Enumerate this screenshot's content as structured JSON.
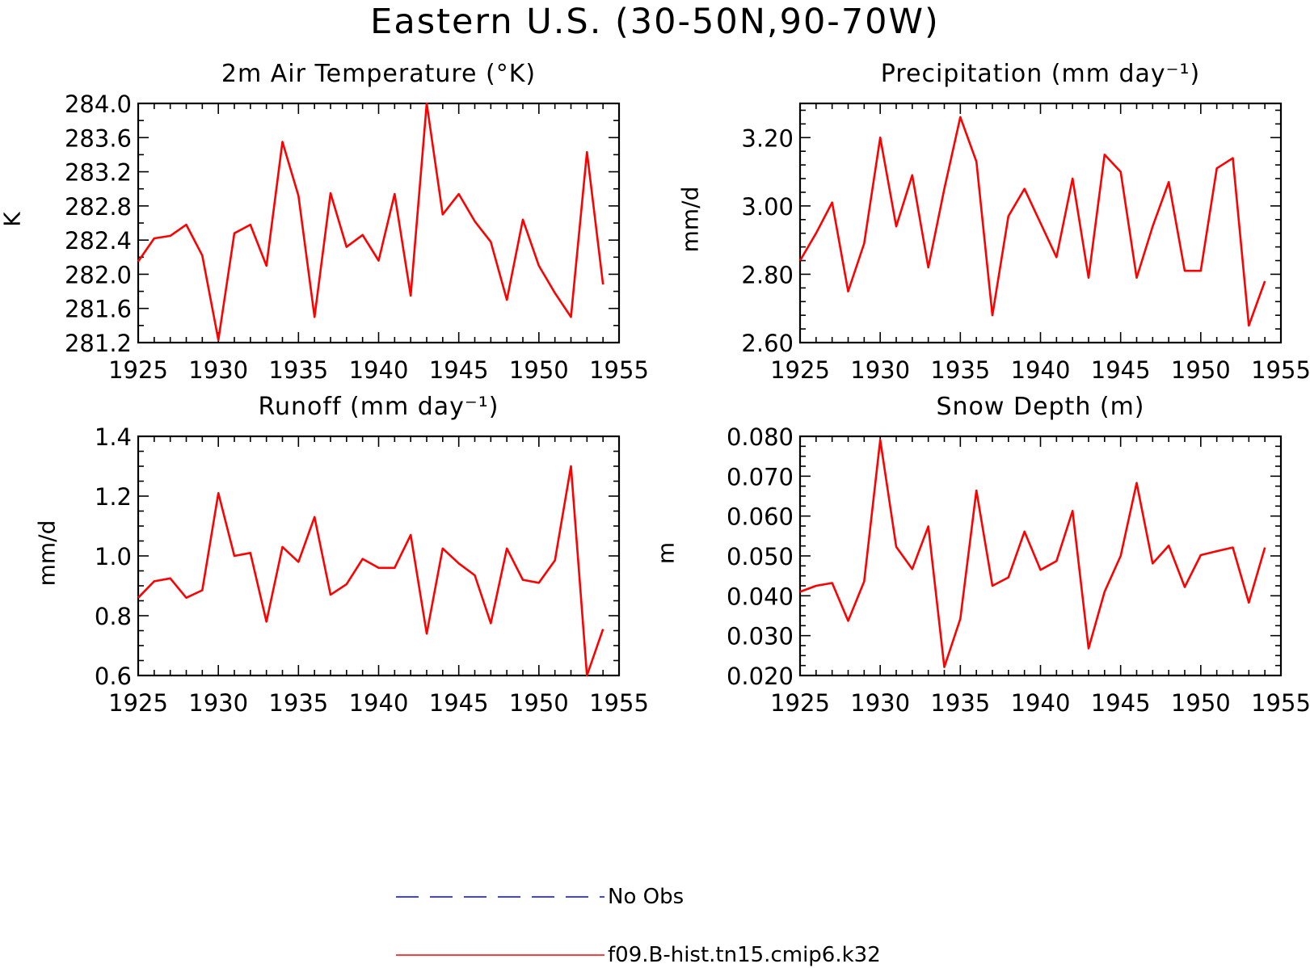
{
  "figure_title": "Eastern U.S. (30-50N,90-70W)",
  "legend": [
    {
      "label": "No Obs",
      "color": "#0000ff",
      "style": "dashed"
    },
    {
      "label": "f09.B-hist.tn15.cmip6.k32",
      "color": "#ff0000",
      "style": "solid"
    }
  ],
  "chart_data": [
    {
      "type": "line",
      "title": "2m Air Temperature (°K)",
      "xlabel": "",
      "ylabel": "K",
      "xlim": [
        1925,
        1955
      ],
      "ylim": [
        281.2,
        284.0
      ],
      "xticks": [
        "1925",
        "1930",
        "1935",
        "1940",
        "1945",
        "1950",
        "1955"
      ],
      "yticks": [
        "281.2",
        "281.6",
        "282.0",
        "282.4",
        "282.8",
        "283.2",
        "283.6",
        "284.0"
      ],
      "x": [
        1925,
        1926,
        1927,
        1928,
        1929,
        1930,
        1931,
        1932,
        1933,
        1934,
        1935,
        1936,
        1937,
        1938,
        1939,
        1940,
        1941,
        1942,
        1943,
        1944,
        1945,
        1946,
        1947,
        1948,
        1949,
        1950,
        1951,
        1952,
        1953,
        1954
      ],
      "series": [
        {
          "name": "f09.B-hist.tn15.cmip6.k32",
          "color": "#ff0000",
          "values": [
            282.15,
            282.42,
            282.45,
            282.58,
            282.22,
            281.23,
            282.48,
            282.58,
            282.1,
            283.55,
            282.92,
            281.5,
            282.95,
            282.32,
            282.46,
            282.16,
            282.94,
            281.75,
            284.0,
            282.7,
            282.94,
            282.62,
            282.38,
            281.7,
            282.64,
            282.1,
            281.78,
            281.5,
            283.43,
            281.88
          ]
        }
      ],
      "grid": false
    },
    {
      "type": "line",
      "title": "Precipitation (mm day⁻¹)",
      "xlabel": "",
      "ylabel": "mm/d",
      "xlim": [
        1925,
        1955
      ],
      "ylim": [
        2.6,
        3.3
      ],
      "xticks": [
        "1925",
        "1930",
        "1935",
        "1940",
        "1945",
        "1950",
        "1955"
      ],
      "yticks": [
        "2.60",
        "2.80",
        "3.00",
        "3.20"
      ],
      "x": [
        1925,
        1926,
        1927,
        1928,
        1929,
        1930,
        1931,
        1932,
        1933,
        1934,
        1935,
        1936,
        1937,
        1938,
        1939,
        1940,
        1941,
        1942,
        1943,
        1944,
        1945,
        1946,
        1947,
        1948,
        1949,
        1950,
        1951,
        1952,
        1953,
        1954
      ],
      "series": [
        {
          "name": "f09.B-hist.tn15.cmip6.k32",
          "color": "#ff0000",
          "values": [
            2.84,
            2.92,
            3.01,
            2.75,
            2.89,
            3.2,
            2.94,
            3.09,
            2.82,
            3.05,
            3.26,
            3.13,
            2.68,
            2.97,
            3.05,
            2.95,
            2.85,
            3.08,
            2.79,
            3.15,
            3.1,
            2.79,
            2.94,
            3.07,
            2.81,
            2.81,
            3.11,
            3.14,
            2.65,
            2.78
          ]
        }
      ],
      "grid": false
    },
    {
      "type": "line",
      "title": "Runoff (mm day⁻¹)",
      "xlabel": "",
      "ylabel": "mm/d",
      "xlim": [
        1925,
        1955
      ],
      "ylim": [
        0.6,
        1.4
      ],
      "xticks": [
        "1925",
        "1930",
        "1935",
        "1940",
        "1945",
        "1950",
        "1955"
      ],
      "yticks": [
        "0.6",
        "0.8",
        "1.0",
        "1.2",
        "1.4"
      ],
      "x": [
        1925,
        1926,
        1927,
        1928,
        1929,
        1930,
        1931,
        1932,
        1933,
        1934,
        1935,
        1936,
        1937,
        1938,
        1939,
        1940,
        1941,
        1942,
        1943,
        1944,
        1945,
        1946,
        1947,
        1948,
        1949,
        1950,
        1951,
        1952,
        1953,
        1954
      ],
      "series": [
        {
          "name": "f09.B-hist.tn15.cmip6.k32",
          "color": "#ff0000",
          "values": [
            0.86,
            0.915,
            0.925,
            0.86,
            0.885,
            1.21,
            1.0,
            1.01,
            0.78,
            1.03,
            0.98,
            1.13,
            0.87,
            0.905,
            0.99,
            0.96,
            0.96,
            1.07,
            0.74,
            1.025,
            0.975,
            0.935,
            0.775,
            1.025,
            0.92,
            0.91,
            0.985,
            1.3,
            0.6,
            0.755
          ]
        }
      ],
      "grid": false
    },
    {
      "type": "line",
      "title": "Snow Depth (m)",
      "xlabel": "",
      "ylabel": "m",
      "xlim": [
        1925,
        1955
      ],
      "ylim": [
        0.02,
        0.08
      ],
      "xticks": [
        "1925",
        "1930",
        "1935",
        "1940",
        "1945",
        "1950",
        "1955"
      ],
      "yticks": [
        "0.020",
        "0.030",
        "0.040",
        "0.050",
        "0.060",
        "0.070",
        "0.080"
      ],
      "x": [
        1925,
        1926,
        1927,
        1928,
        1929,
        1930,
        1931,
        1932,
        1933,
        1934,
        1935,
        1936,
        1937,
        1938,
        1939,
        1940,
        1941,
        1942,
        1943,
        1944,
        1945,
        1946,
        1947,
        1948,
        1949,
        1950,
        1951,
        1952,
        1953,
        1954
      ],
      "series": [
        {
          "name": "f09.B-hist.tn15.cmip6.k32",
          "color": "#ff0000",
          "values": [
            0.041,
            0.0425,
            0.0432,
            0.0337,
            0.0436,
            0.0791,
            0.0523,
            0.0467,
            0.0574,
            0.0221,
            0.0342,
            0.0664,
            0.0425,
            0.0446,
            0.0561,
            0.0465,
            0.0487,
            0.0613,
            0.0268,
            0.041,
            0.05,
            0.0683,
            0.0481,
            0.0526,
            0.0422,
            0.0502,
            0.0512,
            0.0521,
            0.0383,
            0.0521
          ]
        }
      ],
      "grid": false
    }
  ]
}
